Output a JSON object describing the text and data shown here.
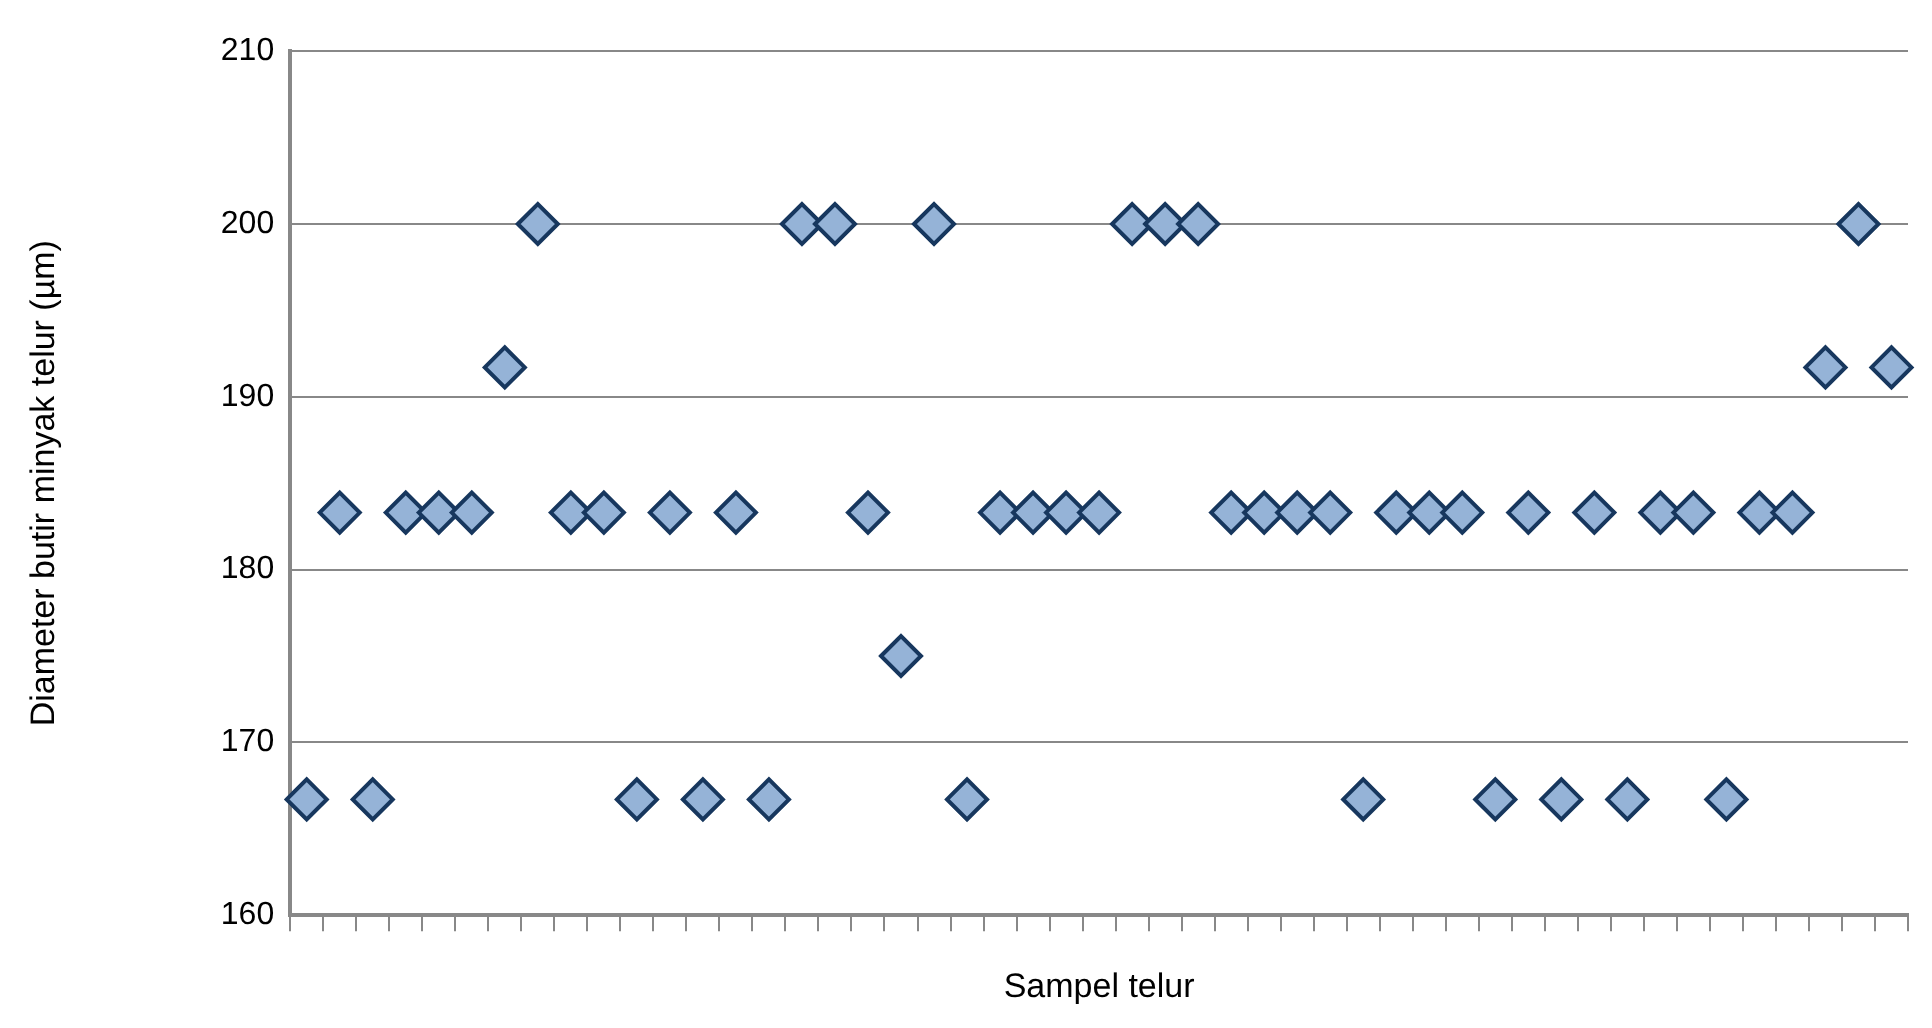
{
  "chart_data": {
    "type": "scatter",
    "xlabel": "Sampel telur",
    "ylabel": "Diameter butir minyak telur (µm)",
    "categories": [
      null,
      null,
      null,
      null,
      null,
      null,
      null,
      null,
      null,
      null,
      null,
      null,
      null,
      null,
      null,
      null,
      null,
      null,
      null,
      null,
      null,
      null,
      null,
      null,
      null,
      null,
      null,
      null,
      null,
      null,
      null,
      null,
      null,
      null,
      null,
      null,
      null,
      null,
      null,
      null,
      null,
      null,
      null,
      null,
      null,
      null,
      null,
      null,
      null
    ],
    "series": [
      {
        "color": "#95b3d7",
        "values": [
          166.7,
          183.3,
          166.7,
          183.3,
          183.3,
          183.3,
          191.7,
          200,
          183.3,
          183.3,
          166.7,
          183.3,
          166.7,
          183.3,
          166.7,
          200,
          200,
          183.3,
          175,
          200,
          166.7,
          183.3,
          183.3,
          183.3,
          183.3,
          200,
          200,
          200,
          183.3,
          183.3,
          183.3,
          183.3,
          166.7,
          183.3,
          183.3,
          183.3,
          166.7,
          183.3,
          166.7,
          183.3,
          166.7,
          183.3,
          183.3,
          166.7,
          183.3,
          183.3,
          191.7,
          200,
          191.7
        ]
      }
    ],
    "ylim": [
      160,
      210
    ],
    "yticks": [
      160,
      170,
      180,
      190,
      200,
      210
    ],
    "grid": "y",
    "legend": false,
    "tick_labels": "y",
    "marker": "diamond"
  }
}
